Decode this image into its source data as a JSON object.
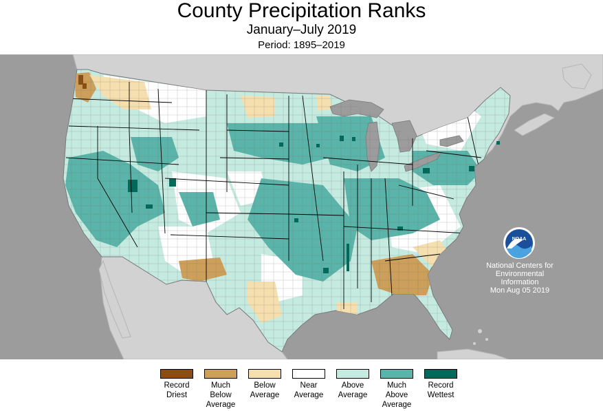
{
  "header": {
    "title": "County Precipitation Ranks",
    "subtitle": "January–July 2019",
    "period": "Period: 1895–2019"
  },
  "credit": {
    "logo_text": "NOAA",
    "lines": [
      "National Centers for",
      "Environmental",
      "Information",
      "Mon Aug 05 2019"
    ]
  },
  "colors": {
    "ocean": "#9c9c9c",
    "foreign_land": "#d2d2d2",
    "record_driest": "#8a4d14",
    "much_below": "#cca05a",
    "below": "#f5dfae",
    "near": "#ffffff",
    "above": "#c5ebe0",
    "much_above": "#5bb4a9",
    "record_wettest": "#00695a"
  },
  "legend": [
    {
      "lines": [
        "Record",
        "Driest"
      ],
      "color": "#8a4d14"
    },
    {
      "lines": [
        "Much",
        "Below",
        "Average"
      ],
      "color": "#cca05a"
    },
    {
      "lines": [
        "Below",
        "Average"
      ],
      "color": "#f5dfae"
    },
    {
      "lines": [
        "Near",
        "Average"
      ],
      "color": "#ffffff"
    },
    {
      "lines": [
        "Above",
        "Average"
      ],
      "color": "#c5ebe0"
    },
    {
      "lines": [
        "Much",
        "Above",
        "Average"
      ],
      "color": "#5bb4a9"
    },
    {
      "lines": [
        "Record",
        "Wettest"
      ],
      "color": "#00695a"
    }
  ]
}
